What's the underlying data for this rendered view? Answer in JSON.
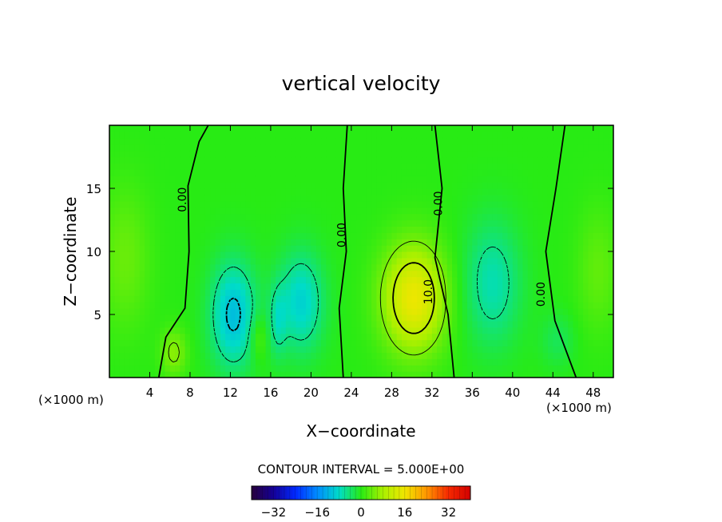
{
  "chart_data": {
    "type": "heatmap",
    "title": "vertical velocity",
    "xlabel": "X−coordinate",
    "ylabel": "Z−coordinate",
    "x_unit_left": "(×1000 m)",
    "x_unit_right": "(×1000 m)",
    "xlim": [
      0,
      50
    ],
    "ylim": [
      0,
      20
    ],
    "x_ticks": [
      4,
      8,
      12,
      16,
      20,
      24,
      28,
      32,
      36,
      40,
      44,
      48
    ],
    "y_ticks": [
      5,
      10,
      15
    ],
    "contour_interval_text": "CONTOUR INTERVAL = 5.000E+00",
    "contour_labels": [
      {
        "text": "0.00",
        "x": 7.6,
        "z": 14.1
      },
      {
        "text": "0.00",
        "x": 23.4,
        "z": 11.3
      },
      {
        "text": "0.00",
        "x": 33.0,
        "z": 13.8
      },
      {
        "text": "10.0",
        "x": 32.0,
        "z": 6.8
      },
      {
        "text": "0.00",
        "x": 43.2,
        "z": 6.6
      }
    ],
    "features": [
      {
        "x": 30.2,
        "z": 6.3,
        "sx": 2.2,
        "sz": 3.0,
        "value": 15.5
      },
      {
        "x": 12.3,
        "z": 5.0,
        "sx": 1.6,
        "sz": 3.0,
        "value": -11
      },
      {
        "x": 19.0,
        "z": 6.0,
        "sx": 1.6,
        "sz": 2.8,
        "value": -9
      },
      {
        "x": 16.7,
        "z": 4.5,
        "sx": 0.6,
        "sz": 2.0,
        "value": -5
      },
      {
        "x": 38.0,
        "z": 7.5,
        "sx": 2.0,
        "sz": 3.5,
        "value": -7
      },
      {
        "x": 6.4,
        "z": 2.0,
        "sx": 0.9,
        "sz": 1.3,
        "value": 6
      },
      {
        "x": 14.8,
        "z": 3.2,
        "sx": 0.6,
        "sz": 1.3,
        "value": 4
      },
      {
        "x": 1.5,
        "z": 9.5,
        "sx": 1.8,
        "sz": 4.0,
        "value": 4
      },
      {
        "x": 48.5,
        "z": 8.5,
        "sx": 1.5,
        "sz": 3.5,
        "value": 3.5
      },
      {
        "x": 44.5,
        "z": 3.0,
        "sx": 1.2,
        "sz": 1.5,
        "value": -3
      }
    ],
    "colorbar": {
      "range": [
        -40,
        40
      ],
      "tick_values": [
        -32,
        -16,
        0,
        16,
        32
      ],
      "tick_labels": [
        "−32",
        "−16",
        "0",
        "16",
        "32"
      ]
    }
  }
}
